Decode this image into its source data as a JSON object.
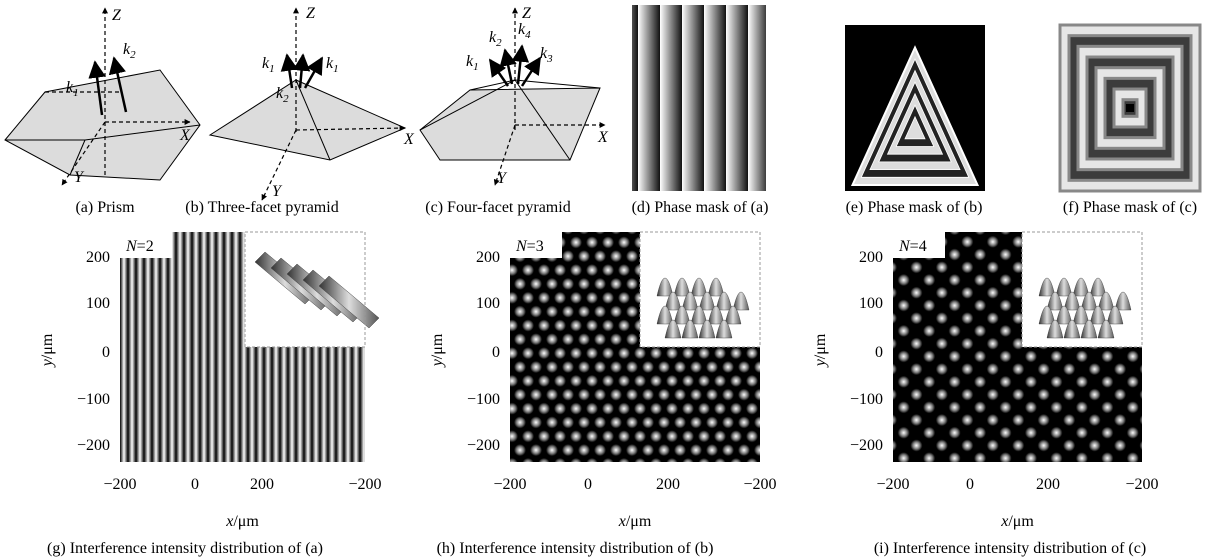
{
  "top_panels": [
    {
      "caption": "(a) Prism",
      "axes": [
        "Z",
        "X",
        "Y"
      ],
      "vectors": [
        {
          "symbol": "k",
          "sub": "1"
        },
        {
          "symbol": "k",
          "sub": "2"
        }
      ]
    },
    {
      "caption": "(b) Three-facet pyramid",
      "axes": [
        "Z",
        "X",
        "Y"
      ],
      "vectors": [
        {
          "symbol": "k",
          "sub": "1"
        },
        {
          "symbol": "k",
          "sub": "1"
        },
        {
          "symbol": "k",
          "sub": "2"
        }
      ]
    },
    {
      "caption": "(c) Four-facet pyramid",
      "axes": [
        "Z",
        "X",
        "Y"
      ],
      "vectors": [
        {
          "symbol": "k",
          "sub": "1"
        },
        {
          "symbol": "k",
          "sub": "2"
        },
        {
          "symbol": "k",
          "sub": "4"
        },
        {
          "symbol": "k",
          "sub": "3"
        }
      ]
    },
    {
      "caption": "(d) Phase mask of (a)"
    },
    {
      "caption": "(e) Phase mask of (b)"
    },
    {
      "caption": "(f) Phase mask of (c)"
    }
  ],
  "bottom_panels": [
    {
      "caption": "(g) Interference intensity distribution of (a)",
      "n_var": "N",
      "n_text": "=2",
      "xticks": [
        "−200",
        "0",
        "200",
        "−200"
      ],
      "yticks": [
        "200",
        "100",
        "0",
        "−100",
        "−200"
      ],
      "xlabel": {
        "var": "x",
        "unit": "/μm"
      },
      "ylabel": {
        "var": "y",
        "unit": "/μm"
      }
    },
    {
      "caption": "(h) Interference intensity  distribution of (b)",
      "n_var": "N",
      "n_text": "=3",
      "xticks": [
        "−200",
        "0",
        "200",
        "−200"
      ],
      "yticks": [
        "200",
        "100",
        "0",
        "−100",
        "−200"
      ],
      "xlabel": {
        "var": "x",
        "unit": "/μm"
      },
      "ylabel": {
        "var": "y",
        "unit": "/μm"
      }
    },
    {
      "caption": "(i) Interference intensity distribution of (c)",
      "n_var": "N",
      "n_text": "=4",
      "xticks": [
        "−200",
        "0",
        "200",
        "−200"
      ],
      "yticks": [
        "200",
        "100",
        "0",
        "−100",
        "−200"
      ],
      "xlabel": {
        "var": "x",
        "unit": "/μm"
      },
      "ylabel": {
        "var": "y",
        "unit": "/μm"
      }
    }
  ]
}
